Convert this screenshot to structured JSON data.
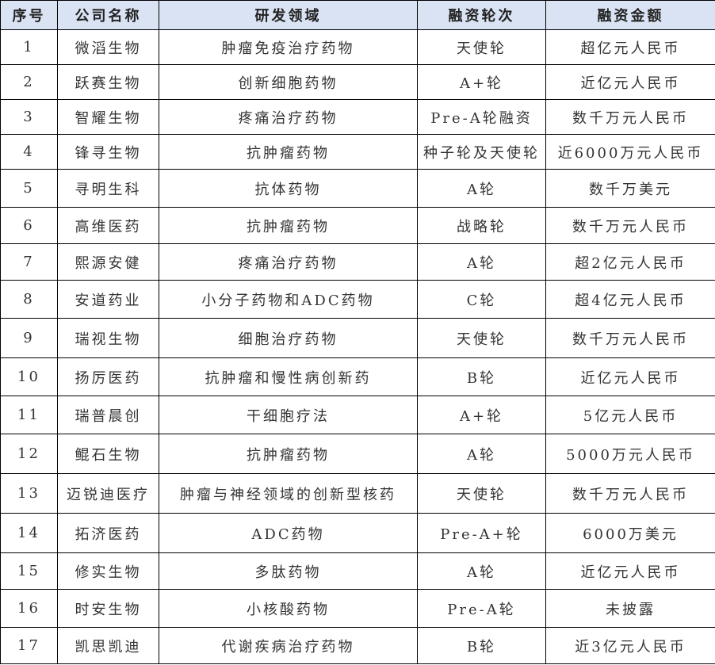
{
  "header_bg": "#dae3f3",
  "headers": [
    "序号",
    "公司名称",
    "研发领域",
    "融资轮次",
    "融资金额"
  ],
  "rows": [
    [
      "1",
      "微滔生物",
      "肿瘤免疫治疗药物",
      "天使轮",
      "超亿元人民币"
    ],
    [
      "2",
      "跃赛生物",
      "创新细胞药物",
      "A+轮",
      "近亿元人民币"
    ],
    [
      "3",
      "智耀生物",
      "疼痛治疗药物",
      "Pre-A轮融资",
      "数千万元人民币"
    ],
    [
      "4",
      "锋寻生物",
      "抗肿瘤药物",
      "种子轮及天使轮",
      "近6000万元人民币"
    ],
    [
      "5",
      "寻明生科",
      "抗体药物",
      "A轮",
      "数千万美元"
    ],
    [
      "6",
      "高维医药",
      "抗肿瘤药物",
      "战略轮",
      "数千万元人民币"
    ],
    [
      "7",
      "熙源安健",
      "疼痛治疗药物",
      "A轮",
      "超2亿元人民币"
    ],
    [
      "8",
      "安道药业",
      "小分子药物和ADC药物",
      "C轮",
      "超4亿元人民币"
    ],
    [
      "9",
      "瑞视生物",
      "细胞治疗药物",
      "天使轮",
      "数千万元人民币"
    ],
    [
      "10",
      "扬厉医药",
      "抗肿瘤和慢性病创新药",
      "B轮",
      "近亿元人民币"
    ],
    [
      "11",
      "瑞普晨创",
      "干细胞疗法",
      "A+轮",
      "5亿元人民币"
    ],
    [
      "12",
      "鲲石生物",
      "抗肿瘤药物",
      "A轮",
      "5000万元人民币"
    ],
    [
      "13",
      "迈锐迪医疗",
      "肿瘤与神经领域的创新型核药",
      "天使轮",
      "数千万元人民币"
    ],
    [
      "14",
      "拓济医药",
      "ADC药物",
      "Pre-A+轮",
      "6000万美元"
    ],
    [
      "15",
      "修实生物",
      "多肽药物",
      "A轮",
      "近亿元人民币"
    ],
    [
      "16",
      "时安生物",
      "小核酸药物",
      "Pre-A轮",
      "未披露"
    ],
    [
      "17",
      "凯思凯迪",
      "代谢疾病治疗药物",
      "B轮",
      "近3亿元人民币"
    ]
  ]
}
